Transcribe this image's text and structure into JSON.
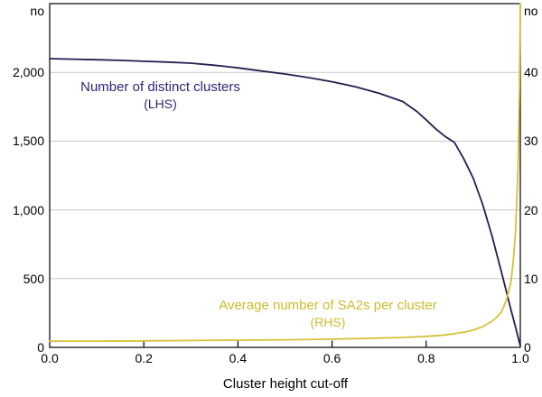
{
  "chart_data": {
    "type": "line",
    "title": "",
    "xlabel": "Cluster height cut-off",
    "grid": true,
    "legend_position": "annotations-inside-plot",
    "x_axis": {
      "min": 0,
      "max": 1,
      "tick_values": [
        0,
        0.2,
        0.4,
        0.6,
        0.8,
        1.0
      ],
      "tick_labels": [
        "0.0",
        "0.2",
        "0.4",
        "0.6",
        "0.8",
        "1.0"
      ]
    },
    "left_axis": {
      "unit": "no",
      "min": 0,
      "max": 2500,
      "tick_values": [
        0,
        500,
        1000,
        1500,
        2000
      ],
      "tick_labels": [
        "0",
        "500",
        "1,000",
        "1,500",
        "2,000"
      ]
    },
    "right_axis": {
      "unit": "no",
      "min": 0,
      "max": 50,
      "tick_values": [
        0,
        10,
        20,
        30,
        40
      ],
      "tick_labels": [
        "0",
        "10",
        "20",
        "30",
        "40"
      ]
    },
    "colors": {
      "gridline": "#c8c8c8",
      "axis_frame": "#000000"
    },
    "series": [
      {
        "name": "Number of distinct clusters",
        "axis": "left",
        "color": "#2b1c4e",
        "label_color": "#2c2577",
        "label": "Number of distinct clusters",
        "sublabel": "(LHS)",
        "points": [
          [
            0,
            2100
          ],
          [
            0.05,
            2096
          ],
          [
            0.1,
            2092
          ],
          [
            0.15,
            2087
          ],
          [
            0.2,
            2081
          ],
          [
            0.25,
            2075
          ],
          [
            0.3,
            2067
          ],
          [
            0.35,
            2052
          ],
          [
            0.4,
            2033
          ],
          [
            0.45,
            2010
          ],
          [
            0.5,
            1988
          ],
          [
            0.55,
            1962
          ],
          [
            0.6,
            1932
          ],
          [
            0.65,
            1895
          ],
          [
            0.7,
            1848
          ],
          [
            0.75,
            1788
          ],
          [
            0.78,
            1716
          ],
          [
            0.8,
            1655
          ],
          [
            0.82,
            1590
          ],
          [
            0.84,
            1535
          ],
          [
            0.86,
            1490
          ],
          [
            0.88,
            1370
          ],
          [
            0.9,
            1230
          ],
          [
            0.92,
            1040
          ],
          [
            0.94,
            810
          ],
          [
            0.96,
            545
          ],
          [
            0.97,
            410
          ],
          [
            0.98,
            275
          ],
          [
            0.99,
            145
          ],
          [
            1,
            10
          ]
        ]
      },
      {
        "name": "Average number of SA2s per cluster",
        "axis": "right",
        "color": "#d4c23a",
        "label_color": "#cdbb2e",
        "label": "Average number of SA2s per cluster",
        "sublabel": "(RHS)",
        "points": [
          [
            0,
            0.9
          ],
          [
            0.1,
            0.92
          ],
          [
            0.2,
            0.95
          ],
          [
            0.3,
            1.0
          ],
          [
            0.4,
            1.05
          ],
          [
            0.5,
            1.1
          ],
          [
            0.6,
            1.2
          ],
          [
            0.7,
            1.35
          ],
          [
            0.75,
            1.45
          ],
          [
            0.8,
            1.6
          ],
          [
            0.84,
            1.8
          ],
          [
            0.88,
            2.2
          ],
          [
            0.9,
            2.5
          ],
          [
            0.92,
            3.0
          ],
          [
            0.94,
            3.8
          ],
          [
            0.95,
            4.4
          ],
          [
            0.96,
            5.2
          ],
          [
            0.97,
            6.8
          ],
          [
            0.98,
            9.5
          ],
          [
            0.985,
            12.5
          ],
          [
            0.99,
            17
          ],
          [
            0.995,
            26
          ],
          [
            0.998,
            37
          ],
          [
            1,
            50
          ]
        ]
      }
    ]
  }
}
